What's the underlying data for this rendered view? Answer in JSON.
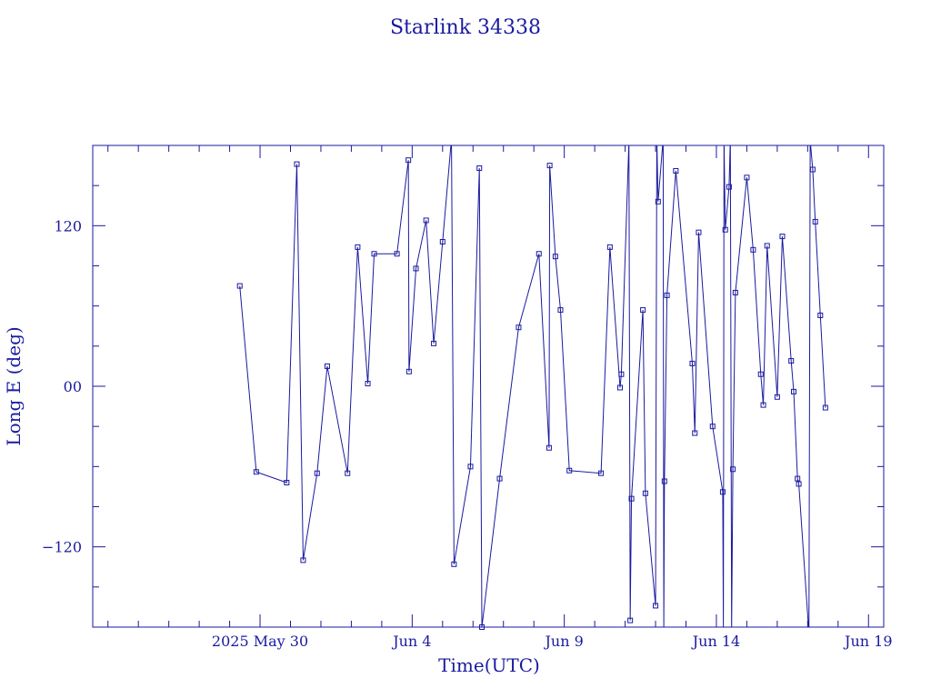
{
  "chart_data": {
    "type": "line",
    "title": "Starlink 34338",
    "xlabel": "Time(UTC)",
    "ylabel": "Long E (deg)",
    "x_axis_kind": "date",
    "xlim": [
      "2025-05-24T12:00",
      "2025-06-19T12:00"
    ],
    "ylim": [
      -180,
      180
    ],
    "x_ticks": [
      {
        "date": "2025-05-30",
        "label": "2025 May 30"
      },
      {
        "date": "2025-06-04",
        "label": "Jun  4"
      },
      {
        "date": "2025-06-09",
        "label": "Jun  9"
      },
      {
        "date": "2025-06-14",
        "label": "Jun 14"
      },
      {
        "date": "2025-06-19",
        "label": "Jun 19"
      }
    ],
    "y_ticks": [
      {
        "value": 120,
        "label": "120"
      },
      {
        "value": 0,
        "label": "00"
      },
      {
        "value": -120,
        "label": "−120"
      }
    ],
    "grid": false,
    "colors": {
      "line": "#1a1aa0",
      "frame": "#1a1aa0",
      "text": "#1a1aa0"
    },
    "series": [
      {
        "wrap": true,
        "points": [
          {
            "t": "2025-05-29T08:00",
            "lon": 75
          },
          {
            "t": "2025-05-29T21:00",
            "lon": -64
          },
          {
            "t": "2025-05-30T21:00",
            "lon": -72
          },
          {
            "t": "2025-05-31T05:00",
            "lon": 166
          },
          {
            "t": "2025-05-31T10:00",
            "lon": -130
          },
          {
            "t": "2025-05-31T21:00",
            "lon": -65
          },
          {
            "t": "2025-06-01T05:00",
            "lon": 15
          },
          {
            "t": "2025-06-01T21:00",
            "lon": -65
          },
          {
            "t": "2025-06-02T05:00",
            "lon": 104
          },
          {
            "t": "2025-06-02T13:00",
            "lon": 2
          },
          {
            "t": "2025-06-02T18:00",
            "lon": 99
          },
          {
            "t": "2025-06-03T12:00",
            "lon": 99
          },
          {
            "t": "2025-06-03T21:00",
            "lon": 169
          },
          {
            "t": "2025-06-03T21:30",
            "lon": 11
          },
          {
            "t": "2025-06-04T03:00",
            "lon": 88
          },
          {
            "t": "2025-06-04T11:00",
            "lon": 124
          },
          {
            "t": "2025-06-04T17:00",
            "lon": 32
          },
          {
            "t": "2025-06-05T00:00",
            "lon": 108
          },
          {
            "t": "2025-06-05T07:00",
            "lon": 185
          },
          {
            "t": "2025-06-05T09:00",
            "lon": -133
          },
          {
            "t": "2025-06-05T22:00",
            "lon": -60
          },
          {
            "t": "2025-06-06T05:00",
            "lon": 163
          },
          {
            "t": "2025-06-06T07:00",
            "lon": -180
          },
          {
            "t": "2025-06-06T21:00",
            "lon": -69
          },
          {
            "t": "2025-06-07T12:00",
            "lon": 44
          },
          {
            "t": "2025-06-08T04:00",
            "lon": 99
          },
          {
            "t": "2025-06-08T12:00",
            "lon": -46
          },
          {
            "t": "2025-06-08T12:30",
            "lon": 165
          },
          {
            "t": "2025-06-08T17:00",
            "lon": 97
          },
          {
            "t": "2025-06-08T21:00",
            "lon": 57
          },
          {
            "t": "2025-06-09T04:00",
            "lon": -63
          },
          {
            "t": "2025-06-10T05:00",
            "lon": -65
          },
          {
            "t": "2025-06-10T12:00",
            "lon": 104
          },
          {
            "t": "2025-06-10T20:00",
            "lon": -1
          },
          {
            "t": "2025-06-10T21:00",
            "lon": 9
          },
          {
            "t": "2025-06-11T03:00",
            "lon": 183
          },
          {
            "t": "2025-06-11T04:00",
            "lon": -175
          },
          {
            "t": "2025-06-11T05:00",
            "lon": -84
          },
          {
            "t": "2025-06-11T14:00",
            "lon": 57
          },
          {
            "t": "2025-06-11T16:00",
            "lon": -80
          },
          {
            "t": "2025-06-12T00:00",
            "lon": -164
          },
          {
            "t": "2025-06-12T01:00",
            "lon": 185
          },
          {
            "t": "2025-06-12T02:00",
            "lon": 138
          },
          {
            "t": "2025-06-12T06:00",
            "lon": 185
          },
          {
            "t": "2025-06-12T06:30",
            "lon": -182
          },
          {
            "t": "2025-06-12T07:00",
            "lon": -71
          },
          {
            "t": "2025-06-12T09:00",
            "lon": 68
          },
          {
            "t": "2025-06-12T16:00",
            "lon": 161
          },
          {
            "t": "2025-06-13T05:00",
            "lon": 17
          },
          {
            "t": "2025-06-13T07:00",
            "lon": -35
          },
          {
            "t": "2025-06-13T10:00",
            "lon": 115
          },
          {
            "t": "2025-06-13T21:00",
            "lon": -30
          },
          {
            "t": "2025-06-14T05:00",
            "lon": -79
          },
          {
            "t": "2025-06-14T05:30",
            "lon": -182
          },
          {
            "t": "2025-06-14T06:00",
            "lon": 185
          },
          {
            "t": "2025-06-14T07:00",
            "lon": 117
          },
          {
            "t": "2025-06-14T10:00",
            "lon": 149
          },
          {
            "t": "2025-06-14T11:00",
            "lon": 185
          },
          {
            "t": "2025-06-14T12:00",
            "lon": -182
          },
          {
            "t": "2025-06-14T13:00",
            "lon": -62
          },
          {
            "t": "2025-06-14T15:00",
            "lon": 70
          },
          {
            "t": "2025-06-15T00:00",
            "lon": 156
          },
          {
            "t": "2025-06-15T05:00",
            "lon": 102
          },
          {
            "t": "2025-06-15T11:00",
            "lon": 9
          },
          {
            "t": "2025-06-15T13:00",
            "lon": -14
          },
          {
            "t": "2025-06-15T16:00",
            "lon": 105
          },
          {
            "t": "2025-06-16T00:00",
            "lon": -8
          },
          {
            "t": "2025-06-16T04:00",
            "lon": 112
          },
          {
            "t": "2025-06-16T11:00",
            "lon": 19
          },
          {
            "t": "2025-06-16T13:00",
            "lon": -4
          },
          {
            "t": "2025-06-16T16:00",
            "lon": -69
          },
          {
            "t": "2025-06-16T17:00",
            "lon": -73
          },
          {
            "t": "2025-06-17T01:00",
            "lon": -185
          },
          {
            "t": "2025-06-17T02:00",
            "lon": 184
          },
          {
            "t": "2025-06-17T04:00",
            "lon": 162
          },
          {
            "t": "2025-06-17T06:00",
            "lon": 123
          },
          {
            "t": "2025-06-17T10:00",
            "lon": 53
          },
          {
            "t": "2025-06-17T14:00",
            "lon": -16
          }
        ]
      }
    ]
  }
}
